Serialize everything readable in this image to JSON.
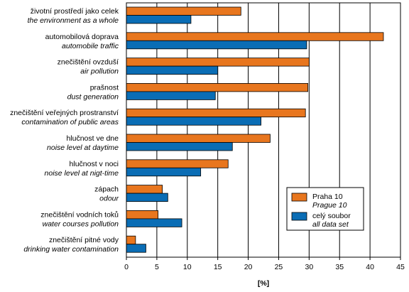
{
  "chart_data": {
    "type": "bar",
    "orientation": "horizontal",
    "categories": [
      {
        "cz": "životní prostředí jako celek",
        "en": "the environment as a whole"
      },
      {
        "cz": "automobilová doprava",
        "en": "automobile traffic"
      },
      {
        "cz": "znečištění ovzduší",
        "en": "air pollution"
      },
      {
        "cz": "prašnost",
        "en": "dust generation"
      },
      {
        "cz": "znečištění veřejných prostranství",
        "en": "contamination of public areas"
      },
      {
        "cz": "hlučnost ve dne",
        "en": "noise level at daytime"
      },
      {
        "cz": "hlučnost v noci",
        "en": "noise level at nigt-time"
      },
      {
        "cz": "zápach",
        "en": "odour"
      },
      {
        "cz": "znečištění vodních toků",
        "en": "water courses pollution"
      },
      {
        "cz": "znečištění pitné vody",
        "en": "drinking water contamination"
      }
    ],
    "series": [
      {
        "name": "Praha 10",
        "name_en": "Prague 10",
        "color": "#E8761E",
        "values": [
          18.8,
          42.2,
          30.0,
          29.8,
          29.4,
          23.6,
          16.7,
          5.9,
          5.2,
          1.5
        ]
      },
      {
        "name": "celý soubor",
        "name_en": "all data set",
        "color": "#0A6DB5",
        "values": [
          10.6,
          29.6,
          15.0,
          14.6,
          22.1,
          17.4,
          12.2,
          6.8,
          9.1,
          3.2
        ]
      }
    ],
    "xlabel": "[%]",
    "xlim": [
      0,
      45
    ],
    "xticks": [
      0,
      5,
      10,
      15,
      20,
      25,
      30,
      35,
      40,
      45
    ],
    "grid": "vertical",
    "legend_position": "lower-right"
  }
}
